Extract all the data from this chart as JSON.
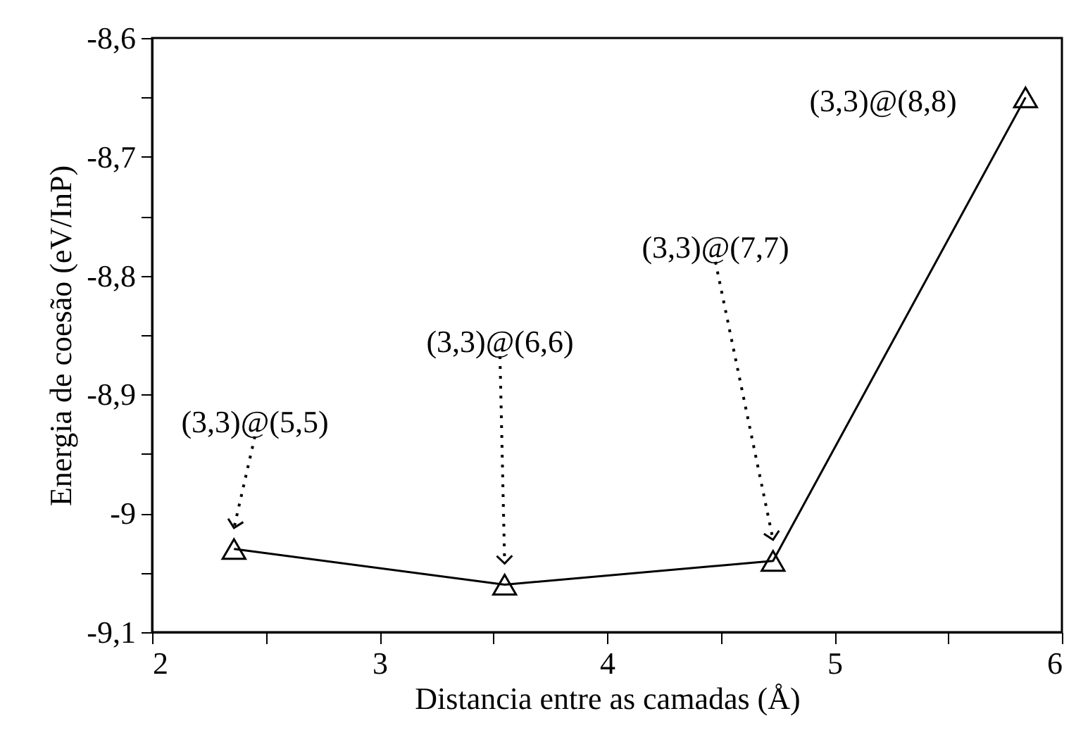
{
  "chart_data": {
    "type": "line",
    "xlabel": "Distancia entre as camadas (Å)",
    "ylabel": "Energia de coesão (eV/InP)",
    "x": [
      2.36,
      3.55,
      4.73,
      5.84
    ],
    "series": [
      {
        "color": "#000000",
        "values": [
          -9.03,
          -9.06,
          -9.04,
          -8.65
        ]
      }
    ],
    "marker": "triangle",
    "line_style": "solid",
    "grid": false,
    "xlim": [
      2,
      6
    ],
    "xticks": [
      2,
      {
        "value": 2.5,
        "label": null
      },
      3,
      {
        "value": 3.5,
        "label": null
      },
      4,
      {
        "value": 4.5,
        "label": null
      },
      5,
      {
        "value": 5.5,
        "label": null
      },
      6
    ],
    "ylim": [
      -9.1,
      -8.6
    ],
    "yticks": [
      {
        "value": -9.1,
        "label": "-9,1"
      },
      {
        "value": -9.05,
        "label": null
      },
      {
        "value": -9,
        "label": "-9"
      },
      {
        "value": -8.95,
        "label": null
      },
      {
        "value": -8.9,
        "label": "-8,9"
      },
      {
        "value": -8.85,
        "label": null
      },
      {
        "value": -8.8,
        "label": "-8,8"
      },
      {
        "value": -8.75,
        "label": null
      },
      {
        "value": -8.7,
        "label": "-8,7"
      },
      {
        "value": -8.65,
        "label": null
      },
      {
        "value": -8.6,
        "label": "-8,6"
      }
    ],
    "annotations": [
      "(3,3)@(5,5)",
      "(3,3)@(6,6)",
      "(3,3)@(7,7)",
      "(3,3)@(8,8)"
    ]
  }
}
